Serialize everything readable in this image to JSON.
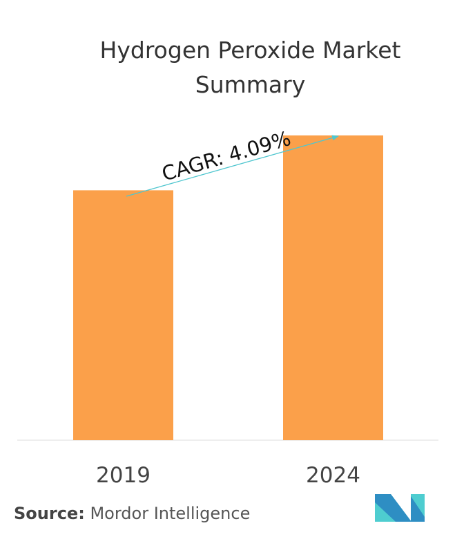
{
  "chart_data": {
    "type": "bar",
    "title": "Hydrogen Peroxide Market Summary",
    "categories": [
      "2019",
      "2024"
    ],
    "values": [
      82,
      100
    ],
    "xlabel": "",
    "ylabel": "",
    "ylim": [
      0,
      100
    ],
    "grid": false,
    "bar_color": "#FBA04A",
    "annotation": {
      "text": "CAGR: 4.09%",
      "arrow_color": "#4FC6CF"
    }
  },
  "source": {
    "label": "Source:",
    "value": "Mordor Intelligence"
  },
  "logo": {
    "colors": [
      "#2E8EC3",
      "#4ECDD0"
    ]
  }
}
